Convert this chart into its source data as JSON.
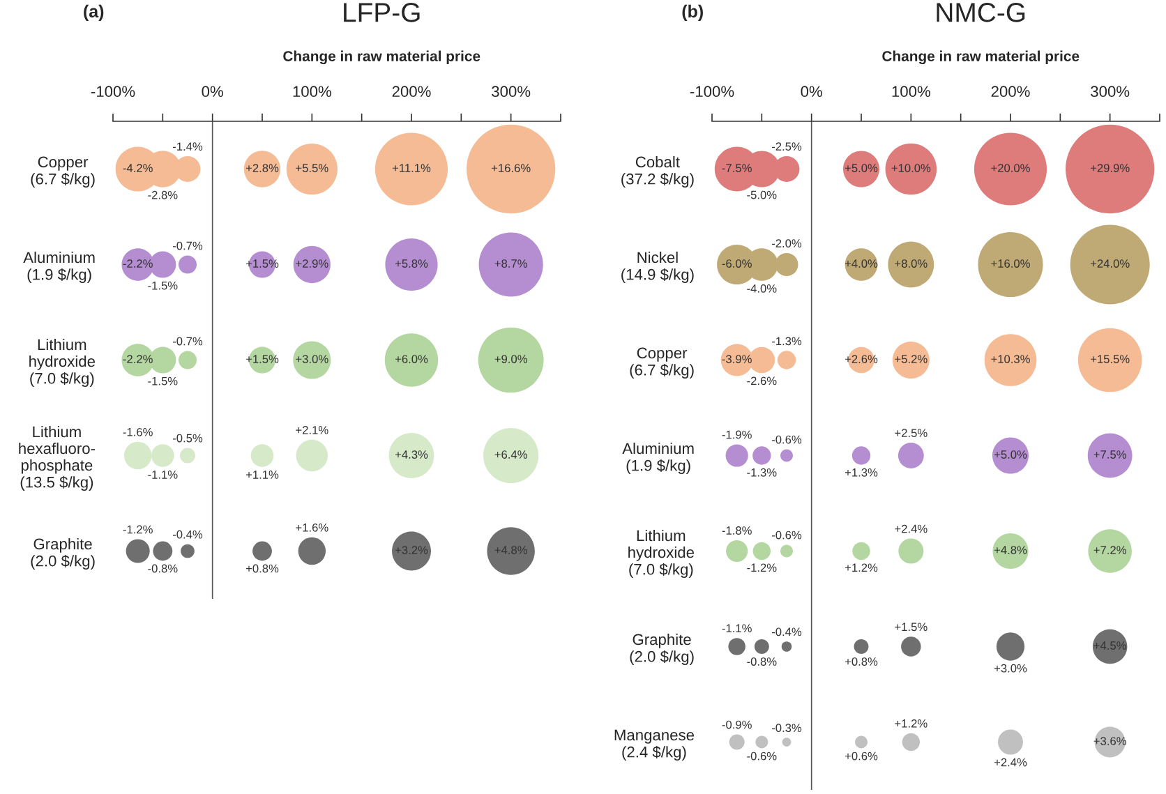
{
  "chart_data": [
    {
      "type": "bubble",
      "orientation": "horizontal",
      "title": "LFP-G",
      "xlabel": "Change in raw material price",
      "grid": false,
      "legend": false,
      "categories": [
        "Copper\n(6.7 $/kg)",
        "Aluminium\n(1.9 $/kg)",
        "Lithium\nhydroxide\n(7.0 $/kg)",
        "Lithium\nhexafluoro-\nphosphate\n(13.5 $/kg)",
        "Graphite\n(2.0 $/kg)"
      ],
      "xlim": [
        -100,
        350
      ],
      "xticks": [
        {
          "value": -100,
          "label": "-100%"
        },
        {
          "value": -50,
          "label": null
        },
        {
          "value": 0,
          "label": "0%"
        },
        {
          "value": 50,
          "label": null
        },
        {
          "value": 100,
          "label": "100%"
        },
        {
          "value": 150,
          "label": null
        },
        {
          "value": 200,
          "label": "200%"
        },
        {
          "value": 250,
          "label": null
        },
        {
          "value": 300,
          "label": "300%"
        },
        {
          "value": 350,
          "label": null
        }
      ],
      "ref_lines": [
        {
          "axis": "x",
          "value": 0,
          "color": "#555555"
        }
      ],
      "series": [
        {
          "colors": [
            "#f4bb94",
            "#b58ed1",
            "#b4d6a0",
            "#d6e9c9",
            "#6f6f6f"
          ],
          "values": [
            -75,
            -75,
            -75,
            -75,
            -75
          ],
          "sizes": [
            0.253,
            0.133,
            0.133,
            0.096,
            0.072
          ]
        },
        {
          "colors": [
            "#f4bb94",
            "#b58ed1",
            "#b4d6a0",
            "#d6e9c9",
            "#6f6f6f"
          ],
          "values": [
            -50,
            -50,
            -50,
            -50,
            -50
          ],
          "sizes": [
            0.169,
            0.09,
            0.09,
            0.066,
            0.048
          ]
        },
        {
          "colors": [
            "#f4bb94",
            "#b58ed1",
            "#b4d6a0",
            "#d6e9c9",
            "#6f6f6f"
          ],
          "values": [
            -25,
            -25,
            -25,
            -25,
            -25
          ],
          "sizes": [
            0.084,
            0.042,
            0.042,
            0.03,
            0.024
          ]
        },
        {
          "colors": [
            "#f4bb94",
            "#b58ed1",
            "#b4d6a0",
            "#d6e9c9",
            "#6f6f6f"
          ],
          "values": [
            50,
            50,
            50,
            50,
            50
          ],
          "sizes": [
            0.169,
            0.09,
            0.09,
            0.066,
            0.048
          ]
        },
        {
          "colors": [
            "#f4bb94",
            "#b58ed1",
            "#b4d6a0",
            "#d6e9c9",
            "#6f6f6f"
          ],
          "values": [
            100,
            100,
            100,
            100,
            100
          ],
          "sizes": [
            0.331,
            0.175,
            0.181,
            0.127,
            0.096
          ]
        },
        {
          "colors": [
            "#f4bb94",
            "#b58ed1",
            "#b4d6a0",
            "#d6e9c9",
            "#6f6f6f"
          ],
          "values": [
            200,
            200,
            200,
            200,
            200
          ],
          "sizes": [
            0.669,
            0.349,
            0.361,
            0.259,
            0.193
          ]
        },
        {
          "colors": [
            "#f4bb94",
            "#b58ed1",
            "#b4d6a0",
            "#d6e9c9",
            "#6f6f6f"
          ],
          "values": [
            300,
            300,
            300,
            300,
            300
          ],
          "sizes": [
            1,
            0.524,
            0.542,
            0.386,
            0.289
          ]
        }
      ],
      "annotations": [
        "(a)",
        {
          "text": "-4.2%",
          "x": -75,
          "y": "Copper\n(6.7 $/kg)"
        },
        {
          "text": "-2.8%",
          "x": -50,
          "y": "Copper\n(6.7 $/kg)"
        },
        {
          "text": "-1.4%",
          "x": -25,
          "y": "Copper\n(6.7 $/kg)"
        },
        {
          "text": "+2.8%",
          "x": 50,
          "y": "Copper\n(6.7 $/kg)"
        },
        {
          "text": "+5.5%",
          "x": 100,
          "y": "Copper\n(6.7 $/kg)"
        },
        {
          "text": "+11.1%",
          "x": 200,
          "y": "Copper\n(6.7 $/kg)"
        },
        {
          "text": "+16.6%",
          "x": 300,
          "y": "Copper\n(6.7 $/kg)"
        },
        {
          "text": "-2.2%",
          "x": -75,
          "y": "Aluminium\n(1.9 $/kg)"
        },
        {
          "text": "-1.5%",
          "x": -50,
          "y": "Aluminium\n(1.9 $/kg)"
        },
        {
          "text": "-0.7%",
          "x": -25,
          "y": "Aluminium\n(1.9 $/kg)"
        },
        {
          "text": "+1.5%",
          "x": 50,
          "y": "Aluminium\n(1.9 $/kg)"
        },
        {
          "text": "+2.9%",
          "x": 100,
          "y": "Aluminium\n(1.9 $/kg)"
        },
        {
          "text": "+5.8%",
          "x": 200,
          "y": "Aluminium\n(1.9 $/kg)"
        },
        {
          "text": "+8.7%",
          "x": 300,
          "y": "Aluminium\n(1.9 $/kg)"
        },
        {
          "text": "-2.2%",
          "x": -75,
          "y": "Lithium\nhydroxide\n(7.0 $/kg)"
        },
        {
          "text": "-1.5%",
          "x": -50,
          "y": "Lithium\nhydroxide\n(7.0 $/kg)"
        },
        {
          "text": "-0.7%",
          "x": -25,
          "y": "Lithium\nhydroxide\n(7.0 $/kg)"
        },
        {
          "text": "+1.5%",
          "x": 50,
          "y": "Lithium\nhydroxide\n(7.0 $/kg)"
        },
        {
          "text": "+3.0%",
          "x": 100,
          "y": "Lithium\nhydroxide\n(7.0 $/kg)"
        },
        {
          "text": "+6.0%",
          "x": 200,
          "y": "Lithium\nhydroxide\n(7.0 $/kg)"
        },
        {
          "text": "+9.0%",
          "x": 300,
          "y": "Lithium\nhydroxide\n(7.0 $/kg)"
        },
        {
          "text": "-1.6%",
          "x": -75,
          "y": "Lithium\nhexafluoro-\nphosphate\n(13.5 $/kg)"
        },
        {
          "text": "-1.1%",
          "x": -50,
          "y": "Lithium\nhexafluoro-\nphosphate\n(13.5 $/kg)"
        },
        {
          "text": "-0.5%",
          "x": -25,
          "y": "Lithium\nhexafluoro-\nphosphate\n(13.5 $/kg)"
        },
        {
          "text": "+1.1%",
          "x": 50,
          "y": "Lithium\nhexafluoro-\nphosphate\n(13.5 $/kg)"
        },
        {
          "text": "+2.1%",
          "x": 100,
          "y": "Lithium\nhexafluoro-\nphosphate\n(13.5 $/kg)"
        },
        {
          "text": "+4.3%",
          "x": 200,
          "y": "Lithium\nhexafluoro-\nphosphate\n(13.5 $/kg)"
        },
        {
          "text": "+6.4%",
          "x": 300,
          "y": "Lithium\nhexafluoro-\nphosphate\n(13.5 $/kg)"
        },
        {
          "text": "-1.2%",
          "x": -75,
          "y": "Graphite\n(2.0 $/kg)"
        },
        {
          "text": "-0.8%",
          "x": -50,
          "y": "Graphite\n(2.0 $/kg)"
        },
        {
          "text": "-0.4%",
          "x": -25,
          "y": "Graphite\n(2.0 $/kg)"
        },
        {
          "text": "+0.8%",
          "x": 50,
          "y": "Graphite\n(2.0 $/kg)"
        },
        {
          "text": "+1.6%",
          "x": 100,
          "y": "Graphite\n(2.0 $/kg)"
        },
        {
          "text": "+3.2%",
          "x": 200,
          "y": "Graphite\n(2.0 $/kg)"
        },
        {
          "text": "+4.8%",
          "x": 300,
          "y": "Graphite\n(2.0 $/kg)"
        }
      ]
    },
    {
      "type": "bubble",
      "orientation": "horizontal",
      "title": "NMC-G",
      "xlabel": "Change in raw material price",
      "grid": false,
      "legend": false,
      "categories": [
        "Cobalt\n(37.2 $/kg)",
        "Nickel\n(14.9 $/kg)",
        "Copper\n(6.7 $/kg)",
        "Aluminium\n(1.9 $/kg)",
        "Lithium\nhydroxide\n(7.0 $/kg)",
        "Graphite\n(2.0 $/kg)",
        "Manganese\n(2.4 $/kg)"
      ],
      "xlim": [
        -100,
        350
      ],
      "xticks": [
        {
          "value": -100,
          "label": "-100%"
        },
        {
          "value": -50,
          "label": null
        },
        {
          "value": 0,
          "label": "0%"
        },
        {
          "value": 50,
          "label": null
        },
        {
          "value": 100,
          "label": "100%"
        },
        {
          "value": 150,
          "label": null
        },
        {
          "value": 200,
          "label": "200%"
        },
        {
          "value": 250,
          "label": null
        },
        {
          "value": 300,
          "label": "300%"
        },
        {
          "value": 350,
          "label": null
        }
      ],
      "ref_lines": [
        {
          "axis": "x",
          "value": 0,
          "color": "#555555"
        }
      ],
      "series": [
        {
          "colors": [
            "#de7b7b",
            "#bfa974",
            "#f4bb94",
            "#b58ed1",
            "#b4d6a0",
            "#6f6f6f",
            "#c0c0c0"
          ],
          "values": [
            -75,
            -75,
            -75,
            -75,
            -75,
            -75,
            -75
          ],
          "sizes": [
            0.251,
            0.201,
            0.13,
            0.064,
            0.06,
            0.037,
            0.03
          ]
        },
        {
          "colors": [
            "#de7b7b",
            "#bfa974",
            "#f4bb94",
            "#b58ed1",
            "#b4d6a0",
            "#6f6f6f",
            "#c0c0c0"
          ],
          "values": [
            -50,
            -50,
            -50,
            -50,
            -50,
            -50,
            -50
          ],
          "sizes": [
            0.167,
            0.134,
            0.087,
            0.043,
            0.04,
            0.027,
            0.02
          ]
        },
        {
          "colors": [
            "#de7b7b",
            "#bfa974",
            "#f4bb94",
            "#b58ed1",
            "#b4d6a0",
            "#6f6f6f",
            "#c0c0c0"
          ],
          "values": [
            -25,
            -25,
            -25,
            -25,
            -25,
            -25,
            -25
          ],
          "sizes": [
            0.084,
            0.067,
            0.043,
            0.02,
            0.02,
            0.013,
            0.01
          ]
        },
        {
          "colors": [
            "#de7b7b",
            "#bfa974",
            "#f4bb94",
            "#b58ed1",
            "#b4d6a0",
            "#6f6f6f",
            "#c0c0c0"
          ],
          "values": [
            50,
            50,
            50,
            50,
            50,
            50,
            50
          ],
          "sizes": [
            0.167,
            0.134,
            0.087,
            0.043,
            0.04,
            0.027,
            0.02
          ]
        },
        {
          "colors": [
            "#de7b7b",
            "#bfa974",
            "#f4bb94",
            "#b58ed1",
            "#b4d6a0",
            "#6f6f6f",
            "#c0c0c0"
          ],
          "values": [
            100,
            100,
            100,
            100,
            100,
            100,
            100
          ],
          "sizes": [
            0.334,
            0.268,
            0.174,
            0.084,
            0.08,
            0.05,
            0.04
          ]
        },
        {
          "colors": [
            "#de7b7b",
            "#bfa974",
            "#f4bb94",
            "#b58ed1",
            "#b4d6a0",
            "#6f6f6f",
            "#c0c0c0"
          ],
          "values": [
            200,
            200,
            200,
            200,
            200,
            200,
            200
          ],
          "sizes": [
            0.669,
            0.535,
            0.344,
            0.167,
            0.161,
            0.1,
            0.08
          ]
        },
        {
          "colors": [
            "#de7b7b",
            "#bfa974",
            "#f4bb94",
            "#b58ed1",
            "#b4d6a0",
            "#6f6f6f",
            "#c0c0c0"
          ],
          "values": [
            300,
            300,
            300,
            300,
            300,
            300,
            300
          ],
          "sizes": [
            1,
            0.803,
            0.518,
            0.251,
            0.241,
            0.151,
            0.12
          ]
        }
      ],
      "annotations": [
        "(b)",
        {
          "text": "-7.5%",
          "x": -75,
          "y": "Cobalt\n(37.2 $/kg)"
        },
        {
          "text": "-5.0%",
          "x": -50,
          "y": "Cobalt\n(37.2 $/kg)"
        },
        {
          "text": "-2.5%",
          "x": -25,
          "y": "Cobalt\n(37.2 $/kg)"
        },
        {
          "text": "+5.0%",
          "x": 50,
          "y": "Cobalt\n(37.2 $/kg)"
        },
        {
          "text": "+10.0%",
          "x": 100,
          "y": "Cobalt\n(37.2 $/kg)"
        },
        {
          "text": "+20.0%",
          "x": 200,
          "y": "Cobalt\n(37.2 $/kg)"
        },
        {
          "text": "+29.9%",
          "x": 300,
          "y": "Cobalt\n(37.2 $/kg)"
        },
        {
          "text": "-6.0%",
          "x": -75,
          "y": "Nickel\n(14.9 $/kg)"
        },
        {
          "text": "-4.0%",
          "x": -50,
          "y": "Nickel\n(14.9 $/kg)"
        },
        {
          "text": "-2.0%",
          "x": -25,
          "y": "Nickel\n(14.9 $/kg)"
        },
        {
          "text": "+4.0%",
          "x": 50,
          "y": "Nickel\n(14.9 $/kg)"
        },
        {
          "text": "+8.0%",
          "x": 100,
          "y": "Nickel\n(14.9 $/kg)"
        },
        {
          "text": "+16.0%",
          "x": 200,
          "y": "Nickel\n(14.9 $/kg)"
        },
        {
          "text": "+24.0%",
          "x": 300,
          "y": "Nickel\n(14.9 $/kg)"
        },
        {
          "text": "-3.9%",
          "x": -75,
          "y": "Copper\n(6.7 $/kg)"
        },
        {
          "text": "-2.6%",
          "x": -50,
          "y": "Copper\n(6.7 $/kg)"
        },
        {
          "text": "-1.3%",
          "x": -25,
          "y": "Copper\n(6.7 $/kg)"
        },
        {
          "text": "+2.6%",
          "x": 50,
          "y": "Copper\n(6.7 $/kg)"
        },
        {
          "text": "+5.2%",
          "x": 100,
          "y": "Copper\n(6.7 $/kg)"
        },
        {
          "text": "+10.3%",
          "x": 200,
          "y": "Copper\n(6.7 $/kg)"
        },
        {
          "text": "+15.5%",
          "x": 300,
          "y": "Copper\n(6.7 $/kg)"
        },
        {
          "text": "-1.9%",
          "x": -75,
          "y": "Aluminium\n(1.9 $/kg)"
        },
        {
          "text": "-1.3%",
          "x": -50,
          "y": "Aluminium\n(1.9 $/kg)"
        },
        {
          "text": "-0.6%",
          "x": -25,
          "y": "Aluminium\n(1.9 $/kg)"
        },
        {
          "text": "+1.3%",
          "x": 50,
          "y": "Aluminium\n(1.9 $/kg)"
        },
        {
          "text": "+2.5%",
          "x": 100,
          "y": "Aluminium\n(1.9 $/kg)"
        },
        {
          "text": "+5.0%",
          "x": 200,
          "y": "Aluminium\n(1.9 $/kg)"
        },
        {
          "text": "+7.5%",
          "x": 300,
          "y": "Aluminium\n(1.9 $/kg)"
        },
        {
          "text": "-1.8%",
          "x": -75,
          "y": "Lithium\nhydroxide\n(7.0 $/kg)"
        },
        {
          "text": "-1.2%",
          "x": -50,
          "y": "Lithium\nhydroxide\n(7.0 $/kg)"
        },
        {
          "text": "-0.6%",
          "x": -25,
          "y": "Lithium\nhydroxide\n(7.0 $/kg)"
        },
        {
          "text": "+1.2%",
          "x": 50,
          "y": "Lithium\nhydroxide\n(7.0 $/kg)"
        },
        {
          "text": "+2.4%",
          "x": 100,
          "y": "Lithium\nhydroxide\n(7.0 $/kg)"
        },
        {
          "text": "+4.8%",
          "x": 200,
          "y": "Lithium\nhydroxide\n(7.0 $/kg)"
        },
        {
          "text": "+7.2%",
          "x": 300,
          "y": "Lithium\nhydroxide\n(7.0 $/kg)"
        },
        {
          "text": "-1.1%",
          "x": -75,
          "y": "Graphite\n(2.0 $/kg)"
        },
        {
          "text": "-0.8%",
          "x": -50,
          "y": "Graphite\n(2.0 $/kg)"
        },
        {
          "text": "-0.4%",
          "x": -25,
          "y": "Graphite\n(2.0 $/kg)"
        },
        {
          "text": "+0.8%",
          "x": 50,
          "y": "Graphite\n(2.0 $/kg)"
        },
        {
          "text": "+1.5%",
          "x": 100,
          "y": "Graphite\n(2.0 $/kg)"
        },
        {
          "text": "+3.0%",
          "x": 200,
          "y": "Graphite\n(2.0 $/kg)"
        },
        {
          "text": "+4.5%",
          "x": 300,
          "y": "Graphite\n(2.0 $/kg)"
        },
        {
          "text": "-0.9%",
          "x": -75,
          "y": "Manganese\n(2.4 $/kg)"
        },
        {
          "text": "-0.6%",
          "x": -50,
          "y": "Manganese\n(2.4 $/kg)"
        },
        {
          "text": "-0.3%",
          "x": -25,
          "y": "Manganese\n(2.4 $/kg)"
        },
        {
          "text": "+0.6%",
          "x": 50,
          "y": "Manganese\n(2.4 $/kg)"
        },
        {
          "text": "+1.2%",
          "x": 100,
          "y": "Manganese\n(2.4 $/kg)"
        },
        {
          "text": "+2.4%",
          "x": 200,
          "y": "Manganese\n(2.4 $/kg)"
        },
        {
          "text": "+3.6%",
          "x": 300,
          "y": "Manganese\n(2.4 $/kg)"
        }
      ]
    }
  ]
}
